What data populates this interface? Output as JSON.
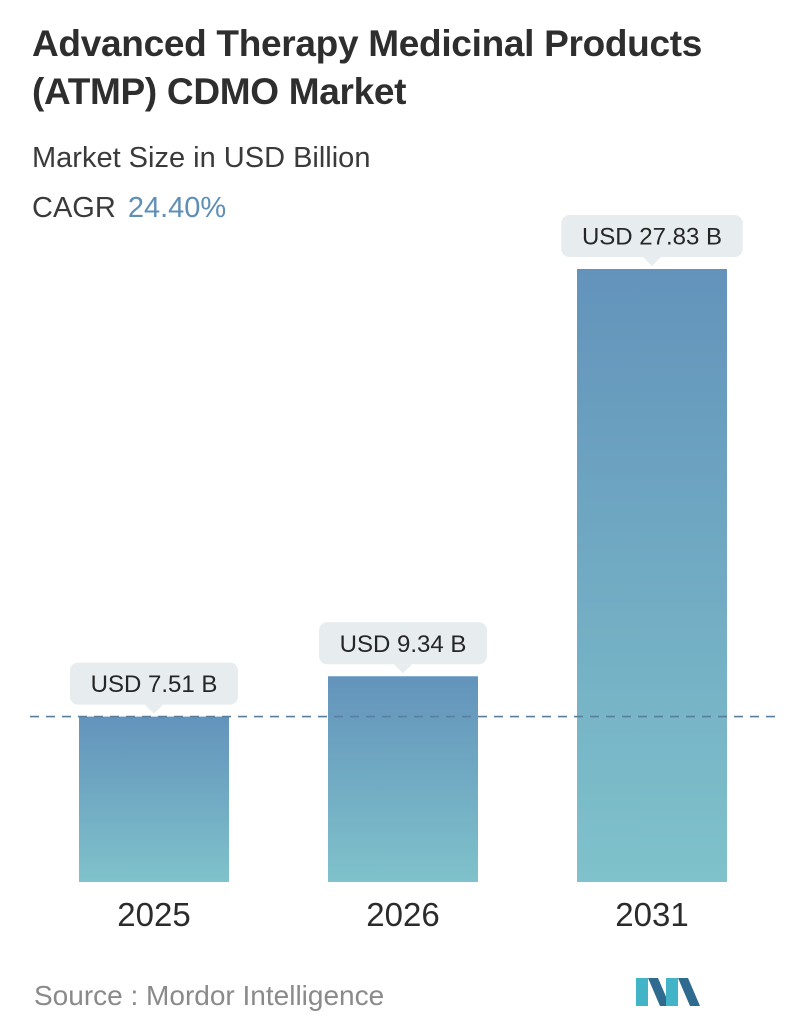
{
  "header": {
    "title_line1": "Advanced Therapy Medicinal Products",
    "title_line2": "(ATMP) CDMO Market",
    "subtitle": "Market Size in USD Billion",
    "cagr_label": "CAGR",
    "cagr_value": "24.40%"
  },
  "footer": {
    "source_text": "Source :  Mordor Intelligence"
  },
  "colors": {
    "bar_top": "#6393bb",
    "bar_bottom": "#7fc2cb",
    "label_bg": "#e7ecee",
    "reference_line": "#5a7f9e",
    "cagr_accent": "#5f8fb7",
    "logo_dark": "#2f6a8f",
    "logo_light": "#43b4c8"
  },
  "chart_data": {
    "type": "bar",
    "categories": [
      "2025",
      "2026",
      "2031"
    ],
    "values": [
      7.51,
      9.34,
      27.83
    ],
    "data_labels": [
      "USD 7.51 B",
      "USD 9.34 B",
      "USD 27.83 B"
    ],
    "title": "Advanced Therapy Medicinal Products (ATMP) CDMO Market",
    "subtitle": "Market Size in USD Billion",
    "unit": "USD Billion",
    "ylim": [
      0,
      27.83
    ],
    "grid": false,
    "reference_line_value": 7.51,
    "legend": "none"
  }
}
